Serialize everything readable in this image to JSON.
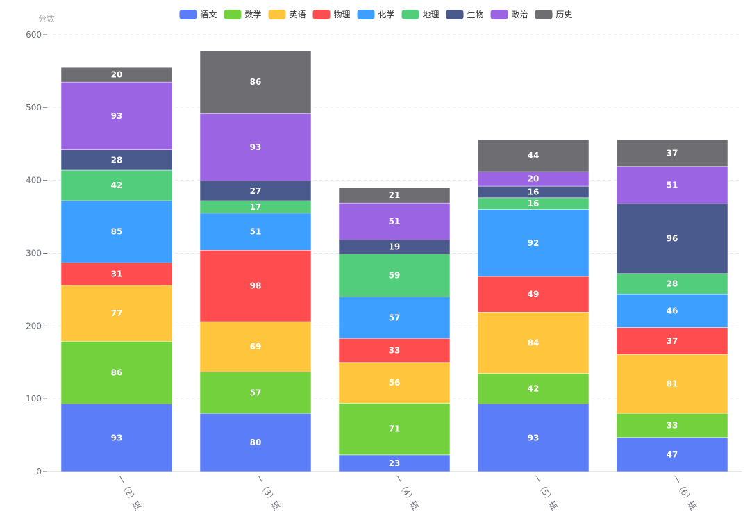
{
  "chart_data": {
    "type": "bar",
    "stacked": true,
    "ylabel": "分数",
    "ylim": [
      0,
      600
    ],
    "yticks": [
      0,
      100,
      200,
      300,
      400,
      500,
      600
    ],
    "grid": true,
    "legend_position": "top-center",
    "categories": [
      "一（2）班",
      "一（3）班",
      "一（4）班",
      "一（5）班",
      "一（6）班"
    ],
    "series": [
      {
        "name": "语文",
        "color": "#5b7ef8",
        "values": [
          93,
          80,
          23,
          93,
          47
        ]
      },
      {
        "name": "数学",
        "color": "#73d13d",
        "values": [
          86,
          57,
          71,
          42,
          33
        ]
      },
      {
        "name": "英语",
        "color": "#ffc53d",
        "values": [
          77,
          69,
          56,
          84,
          81
        ]
      },
      {
        "name": "物理",
        "color": "#ff4d4f",
        "values": [
          31,
          98,
          33,
          49,
          37
        ]
      },
      {
        "name": "化学",
        "color": "#3d9fff",
        "values": [
          85,
          51,
          57,
          92,
          46
        ]
      },
      {
        "name": "地理",
        "color": "#52cd7b",
        "values": [
          42,
          17,
          59,
          16,
          28
        ]
      },
      {
        "name": "生物",
        "color": "#4b5a8c",
        "values": [
          28,
          27,
          19,
          16,
          96
        ]
      },
      {
        "name": "政治",
        "color": "#9a64e2",
        "values": [
          93,
          93,
          51,
          20,
          51
        ]
      },
      {
        "name": "历史",
        "color": "#6e6e72",
        "values": [
          20,
          86,
          21,
          44,
          37
        ]
      }
    ]
  }
}
